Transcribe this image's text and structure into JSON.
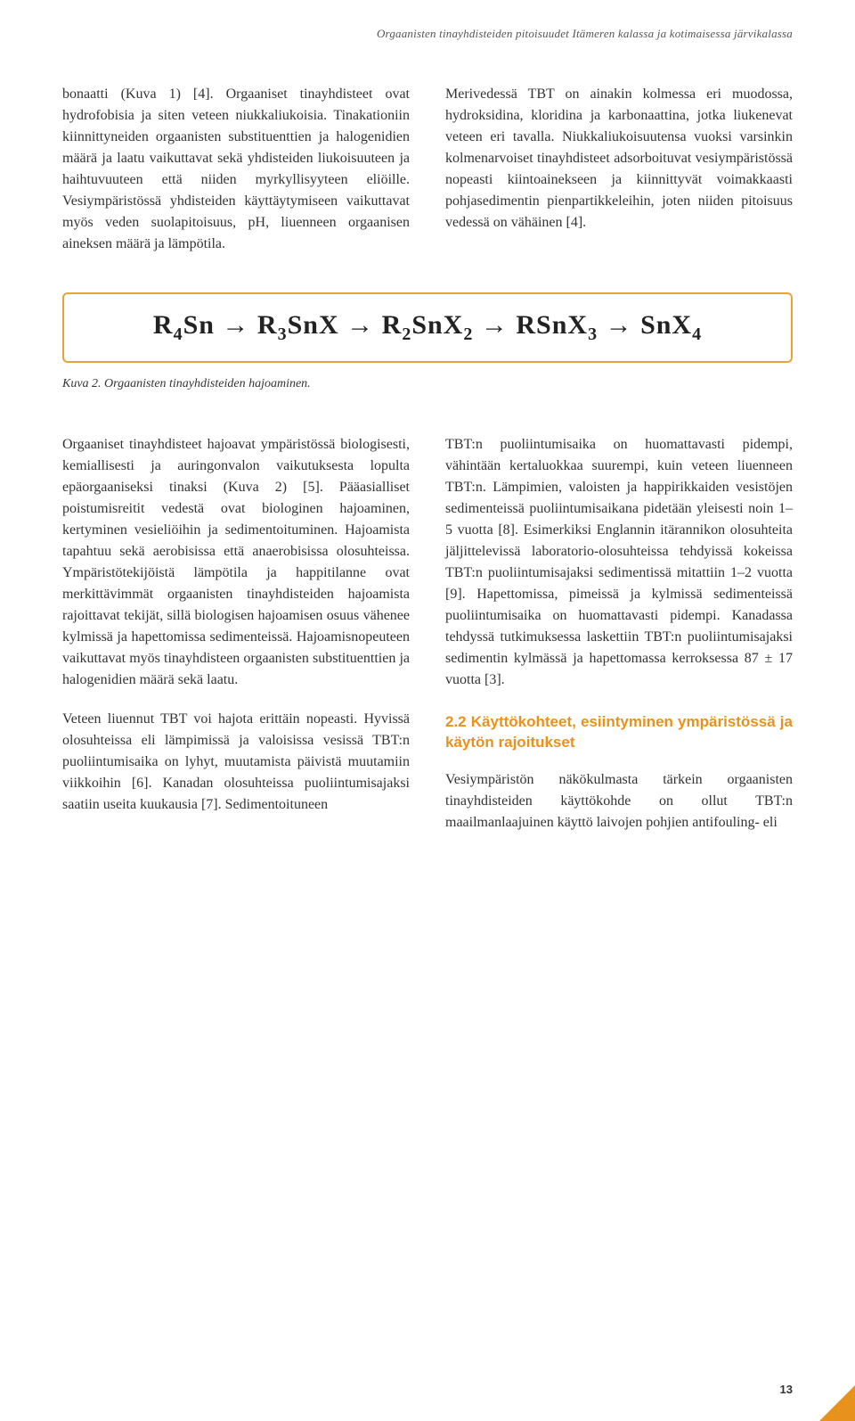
{
  "running_header": "Orgaanisten tinayhdisteiden pitoisuudet Itämeren kalassa ja kotimaisessa järvikalassa",
  "top": {
    "left": "bonaatti (Kuva 1) [4]. Orgaaniset tinayhdisteet ovat hydrofobisia ja siten veteen niukkaliukoisia. Tinakationiin kiinnittyneiden orgaanisten substituenttien ja halogenidien määrä ja laatu vaikuttavat sekä yhdisteiden liukoisuuteen ja haihtuvuuteen että niiden myrkyllisyyteen eliöille. Vesiympäristössä yhdisteiden käyttäytymiseen vaikuttavat myös veden suolapitoisuus, pH, liuenneen orgaanisen aineksen määrä ja lämpötila.",
    "right": "Merivedessä TBT on ainakin kolmessa eri muodossa, hydroksidina, kloridina ja karbonaattina, jotka liukenevat veteen eri tavalla. Niukkaliukoisuutensa vuoksi varsinkin kolmenarvoiset tinayhdisteet adsorboituvat vesiympäristössä nopeasti kiintoainekseen ja kiinnittyvät voimakkaasti pohjasedimentin pienpartikkeleihin, joten niiden pitoisuus vedessä on vähäinen [4]."
  },
  "figure": {
    "caption": "Kuva 2. Orgaanisten tinayhdisteiden hajoaminen."
  },
  "bottom": {
    "left_p1": "Orgaaniset tinayhdisteet hajoavat ympäristössä biologisesti, kemiallisesti ja auringonvalon vaikutuksesta lopulta epäorgaaniseksi tinaksi (Kuva 2) [5]. Pääasialliset poistumisreitit vedestä ovat biologinen hajoaminen, kertyminen vesieliöihin ja sedimentoituminen. Hajoamista tapahtuu sekä aerobisissa että anaerobisissa olosuhteissa. Ympäristötekijöistä lämpötila ja happitilanne ovat merkittävimmät orgaanisten tinayhdisteiden hajoamista rajoittavat tekijät, sillä biologisen hajoamisen osuus vähenee kylmissä ja hapettomissa sedimenteissä. Hajoamisnopeuteen vaikuttavat myös tinayhdisteen orgaanisten substituenttien ja halogenidien määrä sekä laatu.",
    "left_p2": "Veteen liuennut TBT voi hajota erittäin nopeasti. Hyvissä olosuhteissa eli lämpimissä ja valoisissa vesissä TBT:n puoliintumisaika on lyhyt, muutamista päivistä muutamiin viikkoihin [6]. Kanadan olosuhteissa puoliintumisajaksi saatiin useita kuukausia [7]. Sedimentoituneen",
    "right_p1": "TBT:n puoliintumisaika on huomattavasti pidempi, vähintään kertaluokkaa suurempi, kuin veteen liuenneen TBT:n. Lämpimien, valoisten ja happirikkaiden vesistöjen sedimenteissä puoliintumisaikana pidetään yleisesti noin 1–5 vuotta [8]. Esimerkiksi Englannin itärannikon olosuhteita jäljittelevissä laboratorio-olosuhteissa tehdyissä kokeissa TBT:n puoliintumisajaksi sedimentissä mitattiin 1–2 vuotta [9]. Hapettomissa, pimeissä ja kylmissä sedimenteissä puoliintumisaika on huomattavasti pidempi. Kanadassa tehdyssä tutkimuksessa laskettiin TBT:n puoliintumisajaksi sedimentin kylmässä ja hapettomassa kerroksessa 87 ± 17 vuotta [3].",
    "right_heading": "2.2 Käyttökohteet, esiintyminen ympäristössä ja käytön rajoitukset",
    "right_p2": "Vesiympäristön näkökulmasta tärkein orgaanisten tinayhdisteiden käyttökohde on ollut TBT:n maailmanlaajuinen käyttö laivojen pohjien antifouling- eli"
  },
  "page_number": "13",
  "colors": {
    "accent": "#e8921e",
    "box_border": "#e8a23c",
    "text": "#333333",
    "bg": "#ffffff"
  }
}
